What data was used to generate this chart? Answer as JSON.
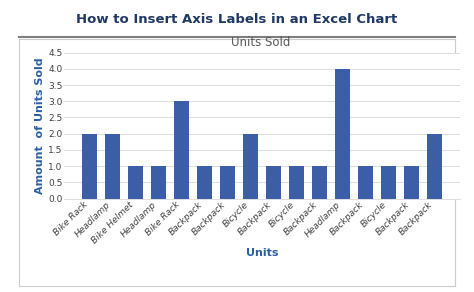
{
  "title": "How to Insert Axis Labels in an Excel Chart",
  "chart_title": "Units Sold",
  "xlabel": "Units",
  "ylabel": "Amount  of Units Sold",
  "categories": [
    "Bike Rack",
    "Headlamp",
    "Bike Helmet",
    "Headlamp",
    "Bike Rack",
    "Backpack",
    "Backpack",
    "Bicycle",
    "Backpack",
    "Bicycle",
    "Backpack",
    "Headlamp",
    "Backpack",
    "Bicycle",
    "Backpack",
    "Backpack"
  ],
  "values": [
    2,
    2,
    1,
    1,
    3,
    1,
    1,
    2,
    1,
    1,
    1,
    4,
    1,
    1,
    1,
    2
  ],
  "bar_color": "#3B5EA6",
  "ylim": [
    0,
    4.5
  ],
  "yticks": [
    0,
    0.5,
    1,
    1.5,
    2,
    2.5,
    3,
    3.5,
    4,
    4.5
  ],
  "title_color": "#1F3864",
  "axis_label_color": "#2E5FA3",
  "chart_title_color": "#595959",
  "background_color": "#ffffff",
  "plot_bg_color": "#ffffff",
  "title_fontsize": 9.5,
  "chart_title_fontsize": 8.5,
  "axis_label_fontsize": 8,
  "tick_label_fontsize": 6.5,
  "separator_color": "#7F7F7F"
}
